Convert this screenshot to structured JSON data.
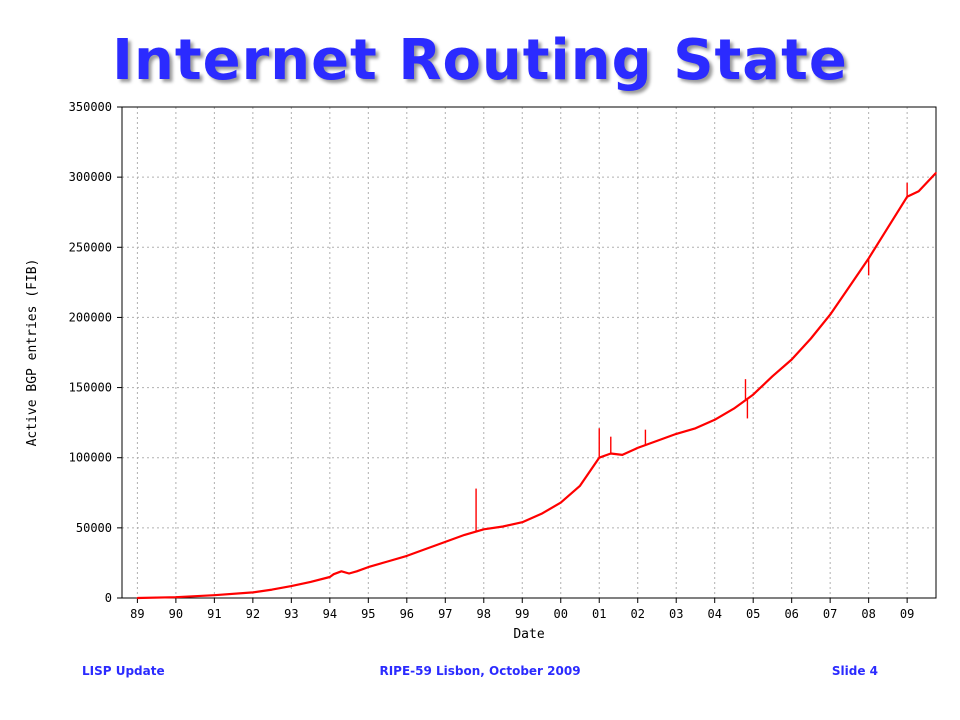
{
  "slide": {
    "title": "Internet Routing State",
    "footer_left": "LISP Update",
    "footer_center": "RIPE-59 Lisbon, October 2009",
    "footer_right": "Slide 4"
  },
  "colors": {
    "title": "#2b2bff",
    "series": "#ff0000",
    "grid": "#b0b0b0"
  },
  "chart_data": {
    "type": "line",
    "title": "",
    "xlabel": "Date",
    "ylabel": "Active BGP entries (FIB)",
    "grid": true,
    "legend": "none",
    "xlim": [
      1988.6,
      2009.75
    ],
    "ylim": [
      0,
      350000
    ],
    "yticks": [
      0,
      50000,
      100000,
      150000,
      200000,
      250000,
      300000,
      350000
    ],
    "ytick_labels": [
      "0",
      "50000",
      "100000",
      "150000",
      "200000",
      "250000",
      "300000",
      "350000"
    ],
    "xticks": [
      1989,
      1990,
      1991,
      1992,
      1993,
      1994,
      1995,
      1996,
      1997,
      1998,
      1999,
      2000,
      2001,
      2002,
      2003,
      2004,
      2005,
      2006,
      2007,
      2008,
      2009
    ],
    "xtick_labels": [
      "89",
      "90",
      "91",
      "92",
      "93",
      "94",
      "95",
      "96",
      "97",
      "98",
      "99",
      "00",
      "01",
      "02",
      "03",
      "04",
      "05",
      "06",
      "07",
      "08",
      "09"
    ],
    "series": [
      {
        "x": [
          1989.0,
          1990.0,
          1991.0,
          1992.0,
          1992.5,
          1993.0,
          1993.5,
          1994.0,
          1994.1,
          1994.3,
          1994.5,
          1994.7,
          1995.0,
          1995.5,
          1996.0,
          1996.5,
          1997.0,
          1997.5,
          1998.0,
          1998.5,
          1999.0,
          1999.5,
          2000.0,
          2000.5,
          2001.0,
          2001.3,
          2001.6,
          2002.0,
          2002.5,
          2003.0,
          2003.5,
          2004.0,
          2004.5,
          2005.0,
          2005.5,
          2006.0,
          2006.5,
          2007.0,
          2007.5,
          2008.0,
          2008.5,
          2009.0,
          2009.3,
          2009.75
        ],
        "y": [
          0,
          600,
          2000,
          4000,
          6000,
          8500,
          11500,
          15000,
          17000,
          19000,
          17500,
          19000,
          22000,
          26000,
          30000,
          35000,
          40000,
          45000,
          49000,
          51000,
          54000,
          60000,
          68000,
          80000,
          100000,
          103000,
          102000,
          107000,
          112000,
          117000,
          121000,
          127000,
          135000,
          145000,
          158000,
          170000,
          185000,
          202000,
          222000,
          242000,
          264000,
          286000,
          290000,
          303000
        ]
      }
    ],
    "spikes": [
      {
        "x": 1997.8,
        "y": 78000
      },
      {
        "x": 2001.0,
        "y": 121000
      },
      {
        "x": 2001.3,
        "y": 115000
      },
      {
        "x": 2002.2,
        "y": 120000
      },
      {
        "x": 2004.8,
        "y": 156000
      },
      {
        "x": 2004.85,
        "y": 128000
      },
      {
        "x": 2008.0,
        "y": 230000
      },
      {
        "x": 2009.0,
        "y": 296000
      }
    ]
  }
}
